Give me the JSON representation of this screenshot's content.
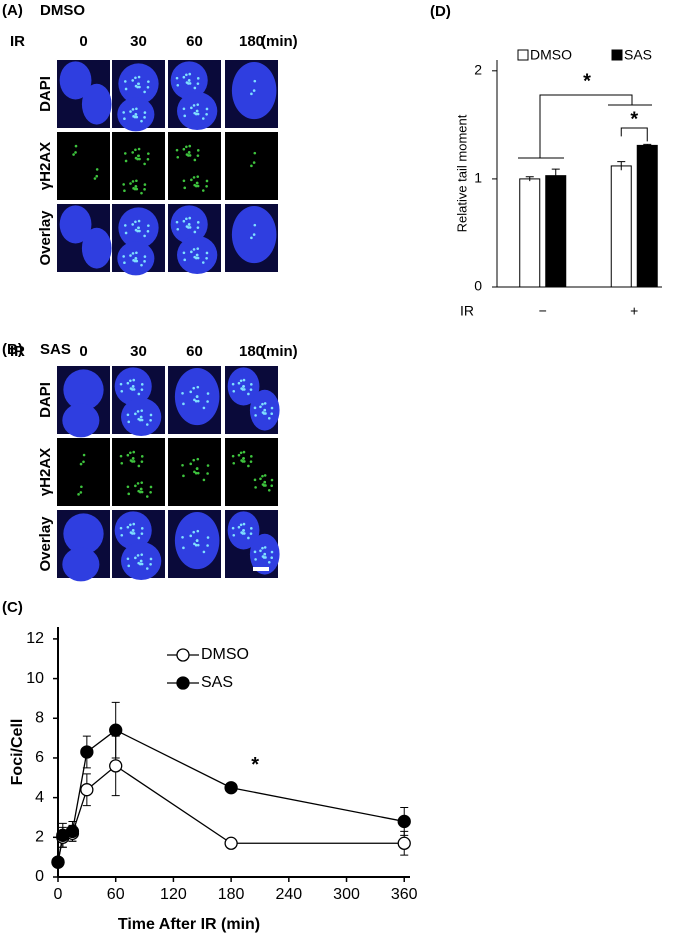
{
  "panels": [
    {
      "label": "(A)",
      "title": "DMSO",
      "row_header": "IR",
      "columns": [
        "0",
        "30",
        "60",
        "180"
      ],
      "unit": "(min)",
      "rows": [
        "DAPI",
        "γH2AX",
        "Overlay"
      ]
    },
    {
      "label": "(B)",
      "title": "SAS",
      "row_header": "IR",
      "columns": [
        "0",
        "30",
        "60",
        "180"
      ],
      "unit": "(min)",
      "rows": [
        "DAPI",
        "γH2AX",
        "Overlay"
      ]
    }
  ],
  "chart_data": [
    {
      "type": "line",
      "label": "(C)",
      "xlabel": "Time After IR (min)",
      "ylabel": "Foci/Cell",
      "x": [
        0,
        5,
        15,
        30,
        60,
        180,
        360
      ],
      "series": [
        {
          "name": "DMSO",
          "color": "#ffffff",
          "values": [
            0.75,
            2.0,
            2.2,
            4.4,
            5.6,
            1.7,
            1.7
          ],
          "errors": [
            0.1,
            0.5,
            0.4,
            0.8,
            1.5,
            0.1,
            0.6
          ]
        },
        {
          "name": "SAS",
          "color": "#000000",
          "values": [
            0.75,
            2.1,
            2.3,
            6.3,
            7.4,
            4.5,
            2.8
          ],
          "errors": [
            0.1,
            0.6,
            0.5,
            0.8,
            1.4,
            0.1,
            0.7
          ]
        }
      ],
      "xlim": [
        0,
        366
      ],
      "xticks": [
        0,
        60,
        120,
        180,
        240,
        300,
        360
      ],
      "ylim": [
        0,
        12.6
      ],
      "yticks": [
        0,
        2,
        4,
        6,
        8,
        10,
        12
      ],
      "legend": "top-center",
      "annotations": [
        "*"
      ]
    },
    {
      "type": "bar",
      "label": "(D)",
      "xlabel": "IR",
      "ylabel": "Relative tail moment",
      "categories": [
        "−",
        "+"
      ],
      "series": [
        {
          "name": "DMSO",
          "color": "#ffffff",
          "values": [
            1.0,
            1.12
          ],
          "errors": [
            0.02,
            0.04
          ]
        },
        {
          "name": "SAS",
          "color": "#000000",
          "values": [
            1.03,
            1.31
          ],
          "errors": [
            0.06,
            0.01
          ]
        }
      ],
      "ylim": [
        0,
        2.1
      ],
      "yticks": [
        0,
        1,
        2
      ],
      "legend": "top",
      "annotations": [
        "*",
        "*"
      ]
    }
  ]
}
